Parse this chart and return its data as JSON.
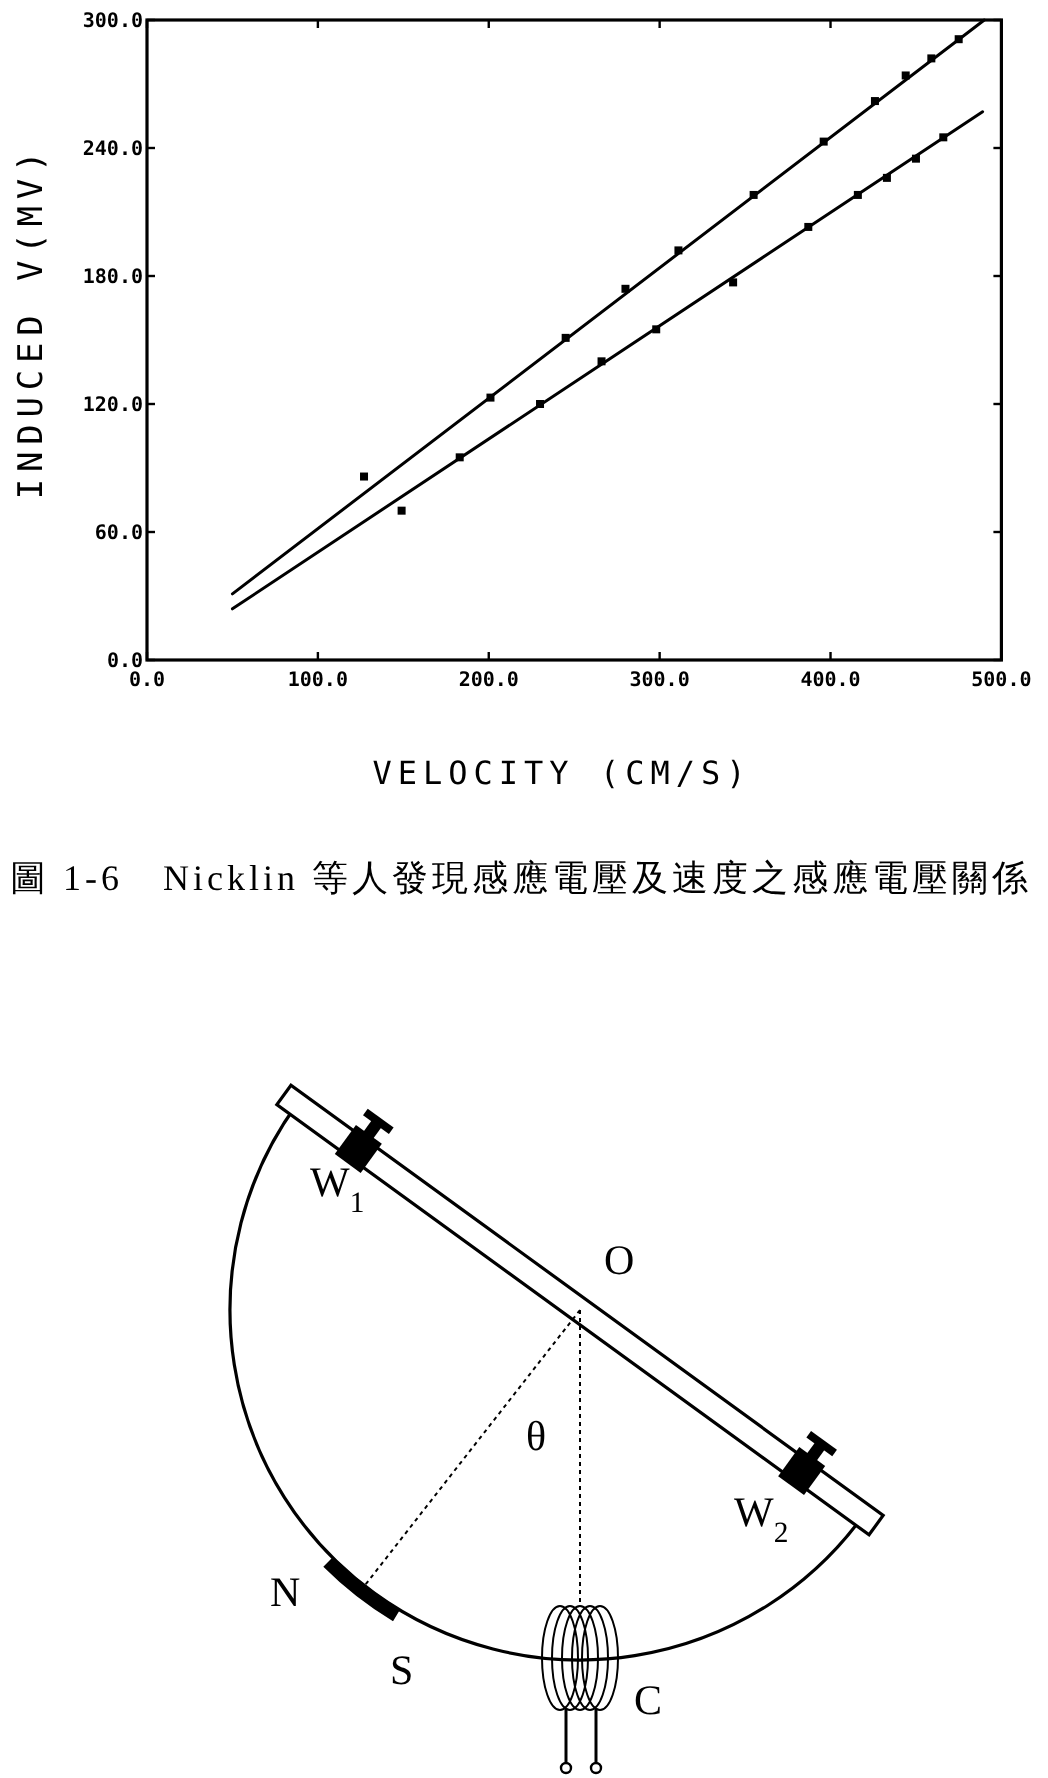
{
  "chart_data": [
    {
      "type": "line",
      "xlabel": "VELOCITY (CM/S)",
      "ylabel": "INDUCED V(MV)",
      "xlim": [
        0,
        500
      ],
      "ylim": [
        0,
        300
      ],
      "xticks": [
        {
          "value": 0,
          "label": "0.0"
        },
        {
          "value": 100,
          "label": "100.0"
        },
        {
          "value": 200,
          "label": "200.0"
        },
        {
          "value": 300,
          "label": "300.0"
        },
        {
          "value": 400,
          "label": "400.0"
        },
        {
          "value": 500,
          "label": "500.0"
        }
      ],
      "yticks": [
        {
          "value": 0,
          "label": "0.0"
        },
        {
          "value": 60,
          "label": "60.0"
        },
        {
          "value": 120,
          "label": "120.0"
        },
        {
          "value": 180,
          "label": "180.0"
        },
        {
          "value": 240,
          "label": "240.0"
        },
        {
          "value": 300,
          "label": "300.0"
        }
      ],
      "series": [
        {
          "type": "line",
          "color": "#000000",
          "x": [
            50,
            490
          ],
          "values": [
            31,
            300
          ]
        },
        {
          "type": "scatter",
          "marker": "square",
          "color": "#000000",
          "x": [
            127,
            201,
            245,
            280,
            311,
            355,
            396,
            426,
            444,
            459,
            475
          ],
          "values": [
            86,
            123,
            151,
            174,
            192,
            218,
            243,
            262,
            274,
            282,
            291
          ]
        },
        {
          "type": "line",
          "color": "#000000",
          "x": [
            50,
            489
          ],
          "values": [
            24,
            257
          ]
        },
        {
          "type": "scatter",
          "marker": "square",
          "color": "#000000",
          "x": [
            149,
            183,
            230,
            266,
            298,
            343,
            387,
            416,
            433,
            450,
            466
          ],
          "values": [
            70,
            95,
            120,
            140,
            155,
            177,
            203,
            218,
            226,
            235,
            245
          ]
        }
      ],
      "annotations": [
        "圖 1-6　Nicklin 等人發現感應電壓及速度之感應電壓關係"
      ]
    },
    {
      "type": "other",
      "annotations": [
        "W$_{1}$",
        "O",
        "θ",
        "W$_{2}$",
        "N",
        "S",
        "C"
      ]
    }
  ]
}
